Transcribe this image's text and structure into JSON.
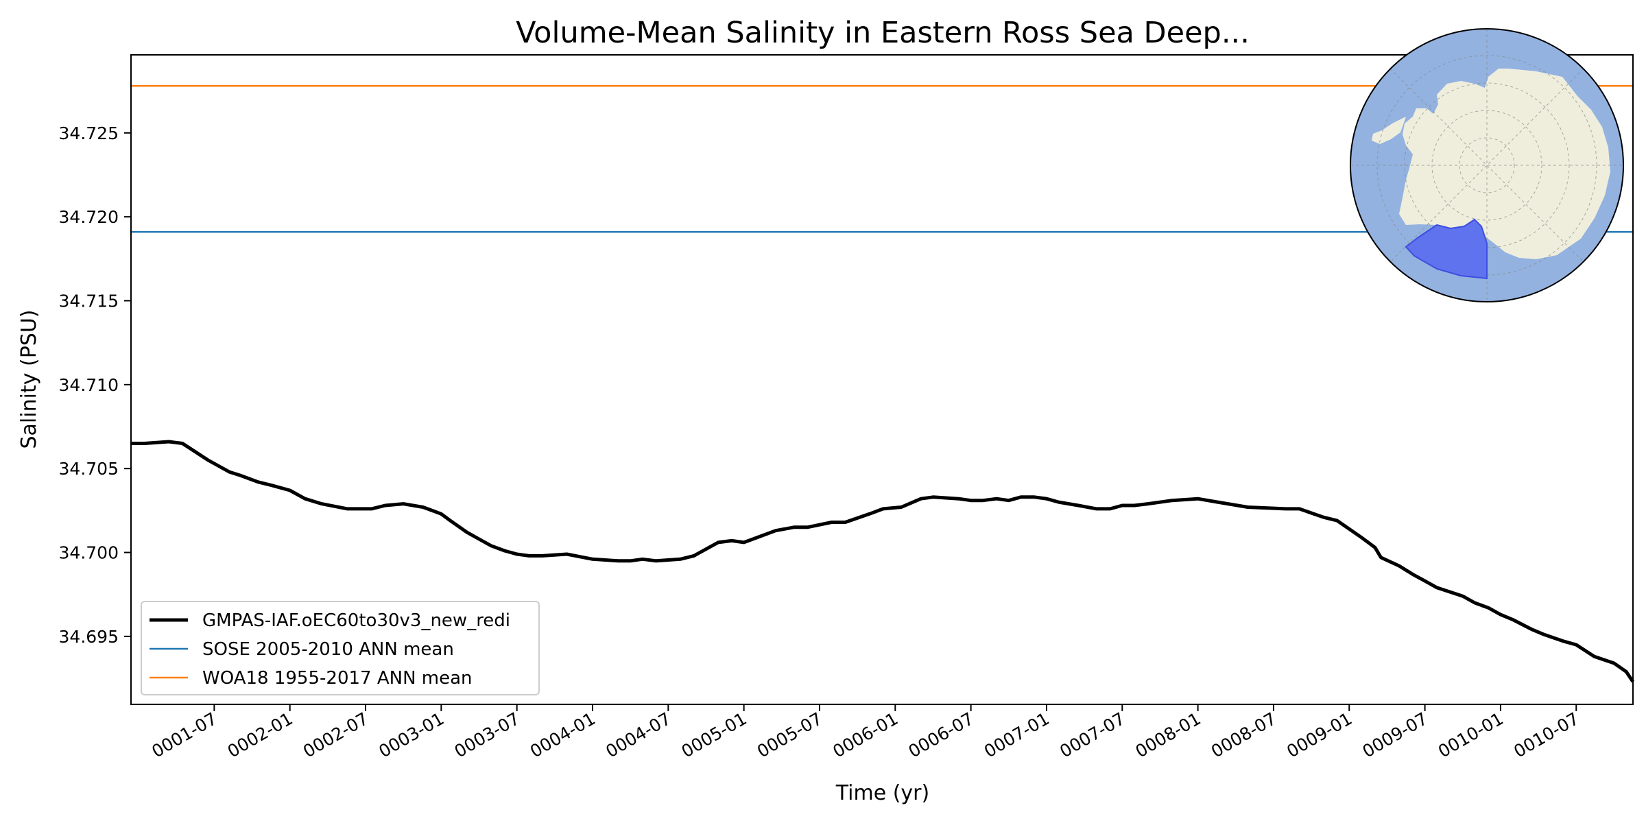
{
  "chart_data": {
    "type": "line",
    "title": "Volume-Mean Salinity in Eastern Ross Sea Deep...",
    "xlabel": "Time (yr)",
    "ylabel": "Salinity (PSU)",
    "xlim": [
      0.95,
      10.875
    ],
    "ylim": [
      34.69095,
      34.72965
    ],
    "yticks": [
      34.695,
      34.7,
      34.705,
      34.71,
      34.715,
      34.72,
      34.725
    ],
    "ytick_labels": [
      "34.695",
      "34.700",
      "34.705",
      "34.710",
      "34.715",
      "34.720",
      "34.725"
    ],
    "xticks": [
      {
        "label": "0001-07",
        "value": 1.5
      },
      {
        "label": "0002-01",
        "value": 2.0
      },
      {
        "label": "0002-07",
        "value": 2.5
      },
      {
        "label": "0003-01",
        "value": 3.0
      },
      {
        "label": "0003-07",
        "value": 3.5
      },
      {
        "label": "0004-01",
        "value": 4.0
      },
      {
        "label": "0004-07",
        "value": 4.5
      },
      {
        "label": "0005-01",
        "value": 5.0
      },
      {
        "label": "0005-07",
        "value": 5.5
      },
      {
        "label": "0006-01",
        "value": 6.0
      },
      {
        "label": "0006-07",
        "value": 6.5
      },
      {
        "label": "0007-01",
        "value": 7.0
      },
      {
        "label": "0007-07",
        "value": 7.5
      },
      {
        "label": "0008-01",
        "value": 8.0
      },
      {
        "label": "0008-07",
        "value": 8.5
      },
      {
        "label": "0009-01",
        "value": 9.0
      },
      {
        "label": "0009-07",
        "value": 9.5
      },
      {
        "label": "0010-01",
        "value": 10.0
      },
      {
        "label": "0010-07",
        "value": 10.5
      }
    ],
    "series": [
      {
        "name": "GMPAS-IAF.oEC60to30v3_new_redi",
        "color": "#000000",
        "x": [
          0.95,
          1.04,
          1.2,
          1.29,
          1.46,
          1.6,
          1.67,
          1.79,
          1.88,
          2.0,
          2.1,
          2.21,
          2.38,
          2.54,
          2.63,
          2.75,
          2.88,
          3.0,
          3.06,
          3.17,
          3.25,
          3.33,
          3.42,
          3.5,
          3.58,
          3.67,
          3.83,
          4.0,
          4.17,
          4.25,
          4.33,
          4.42,
          4.58,
          4.67,
          4.83,
          4.92,
          5.0,
          5.21,
          5.33,
          5.42,
          5.58,
          5.67,
          5.83,
          5.92,
          6.04,
          6.17,
          6.25,
          6.42,
          6.5,
          6.58,
          6.67,
          6.75,
          6.83,
          6.92,
          7.0,
          7.08,
          7.21,
          7.33,
          7.42,
          7.5,
          7.58,
          7.67,
          7.83,
          8.0,
          8.13,
          8.33,
          8.58,
          8.67,
          8.83,
          8.92,
          9.0,
          9.08,
          9.17,
          9.21,
          9.33,
          9.42,
          9.5,
          9.58,
          9.75,
          9.83,
          9.92,
          10.0,
          10.08,
          10.21,
          10.29,
          10.42,
          10.5,
          10.62,
          10.75,
          10.83,
          10.875
        ],
        "y": [
          34.7065,
          34.7065,
          34.7066,
          34.7065,
          34.7055,
          34.7048,
          34.7046,
          34.7042,
          34.704,
          34.7037,
          34.7032,
          34.7029,
          34.7026,
          34.7026,
          34.7028,
          34.7029,
          34.7027,
          34.7023,
          34.7019,
          34.7012,
          34.7008,
          34.7004,
          34.7001,
          34.6999,
          34.6998,
          34.6998,
          34.6999,
          34.6996,
          34.6995,
          34.6995,
          34.6996,
          34.6995,
          34.6996,
          34.6998,
          34.7006,
          34.7007,
          34.7006,
          34.7013,
          34.7015,
          34.7015,
          34.7018,
          34.7018,
          34.7023,
          34.7026,
          34.7027,
          34.7032,
          34.7033,
          34.7032,
          34.7031,
          34.7031,
          34.7032,
          34.7031,
          34.7033,
          34.7033,
          34.7032,
          34.703,
          34.7028,
          34.7026,
          34.7026,
          34.7028,
          34.7028,
          34.7029,
          34.7031,
          34.7032,
          34.703,
          34.7027,
          34.7026,
          34.7026,
          34.7021,
          34.7019,
          34.7014,
          34.7009,
          34.7003,
          34.6997,
          34.6992,
          34.6987,
          34.6983,
          34.6979,
          34.6974,
          34.697,
          34.6967,
          34.6963,
          34.696,
          34.6954,
          34.6951,
          34.6947,
          34.6945,
          34.6938,
          34.6934,
          34.6929,
          34.6923
        ]
      },
      {
        "name": "SOSE 2005-2010 ANN mean",
        "color": "#1f77b4",
        "constant": 34.7191
      },
      {
        "name": "WOA18 1955-2017 ANN mean",
        "color": "#ff7f0e",
        "constant": 34.7278
      }
    ],
    "legend_position": "lower-left",
    "inset_map": "Antarctica polar projection with Eastern Ross Sea region highlighted",
    "colors": {
      "ocean": "#93b2e0",
      "land": "#efeedd",
      "region": "#5b6cf0"
    }
  }
}
